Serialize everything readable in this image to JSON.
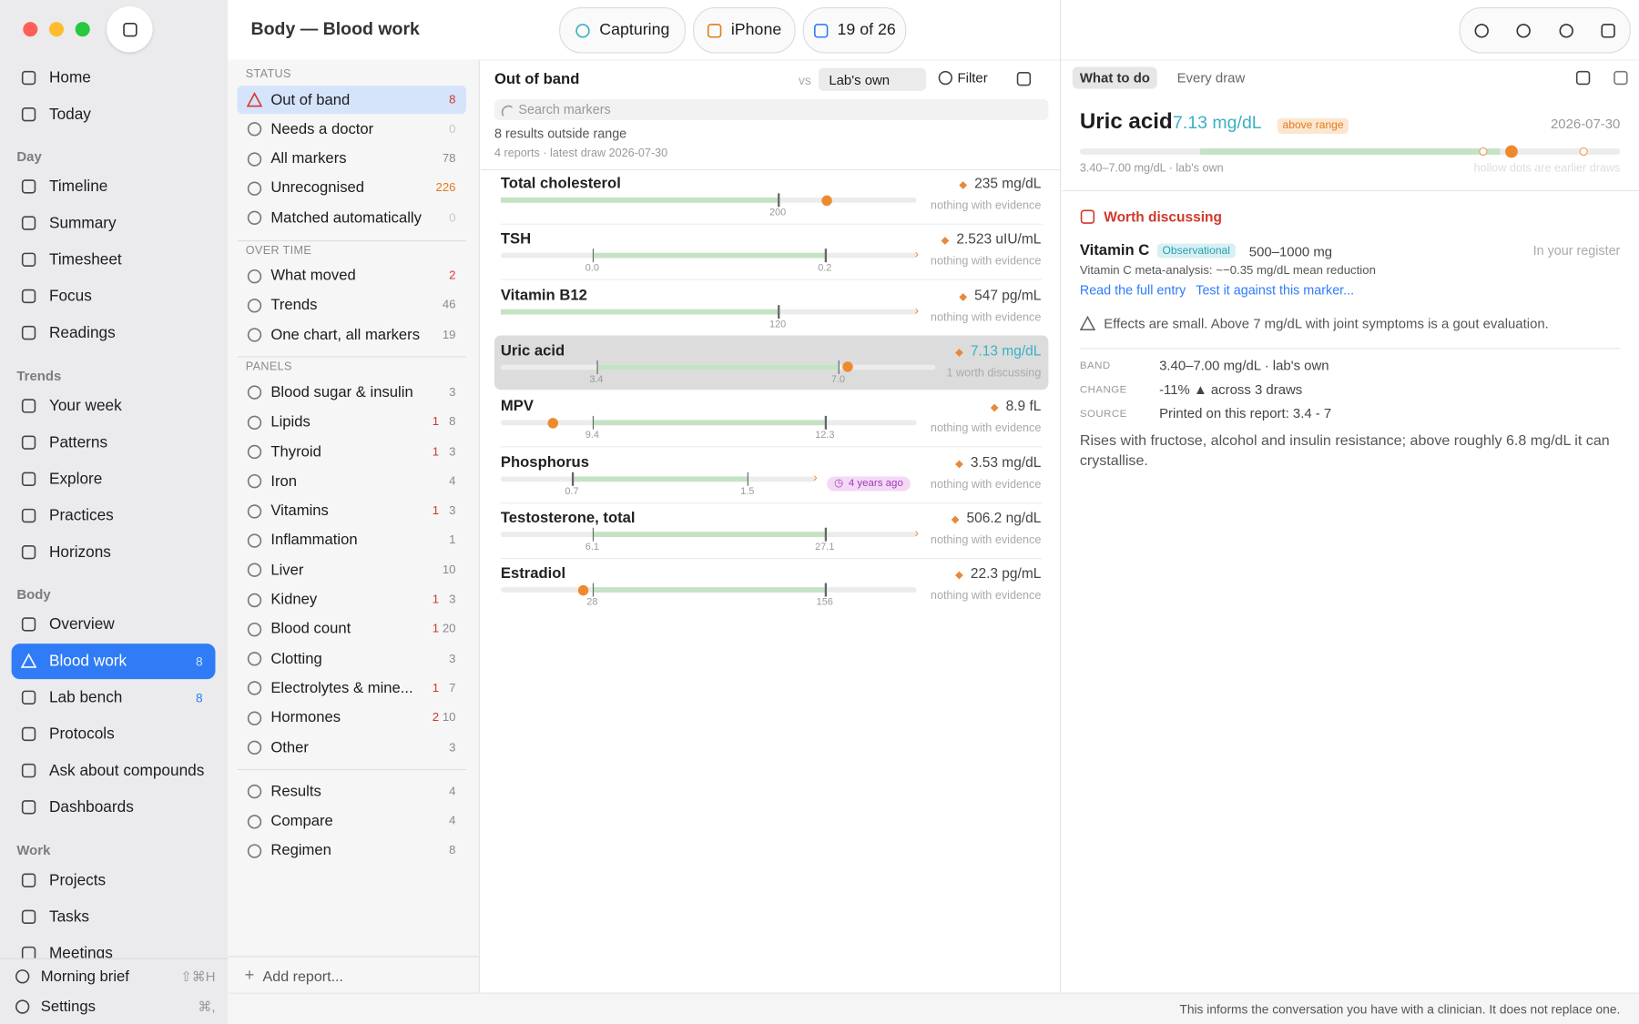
{
  "window": {
    "title": "Body — Blood work",
    "toolbar": [
      {
        "label": "Capturing"
      },
      {
        "label": "iPhone"
      },
      {
        "label": "19 of 26"
      }
    ]
  },
  "sidebar": {
    "groups": [
      {
        "items": [
          {
            "label": "Home"
          },
          {
            "label": "Today"
          }
        ]
      },
      {
        "heading": "Day",
        "items": [
          {
            "label": "Timeline"
          },
          {
            "label": "Summary"
          },
          {
            "label": "Timesheet"
          },
          {
            "label": "Focus"
          },
          {
            "label": "Readings"
          }
        ]
      },
      {
        "heading": "Trends",
        "items": [
          {
            "label": "Your week"
          },
          {
            "label": "Patterns"
          },
          {
            "label": "Explore"
          },
          {
            "label": "Practices"
          },
          {
            "label": "Horizons"
          }
        ]
      },
      {
        "heading": "Body",
        "items": [
          {
            "label": "Overview"
          },
          {
            "label": "Blood work",
            "badge": 8,
            "selected": true
          },
          {
            "label": "Lab bench",
            "badge": 8
          },
          {
            "label": "Protocols"
          },
          {
            "label": "Ask about compounds"
          },
          {
            "label": "Dashboards"
          }
        ]
      },
      {
        "heading": "Work",
        "items": [
          {
            "label": "Projects"
          },
          {
            "label": "Tasks"
          },
          {
            "label": "Meetings"
          }
        ]
      }
    ],
    "footer": [
      {
        "label": "Morning brief",
        "shortcut": "⇧⌘H"
      },
      {
        "label": "Settings",
        "shortcut": "⌘,"
      }
    ]
  },
  "navigator": {
    "sections": [
      {
        "heading": "STATUS",
        "items": [
          {
            "label": "Out of band",
            "count": 8,
            "selected": true
          },
          {
            "label": "Needs a doctor",
            "count": 0
          },
          {
            "label": "All markers",
            "count": 78
          },
          {
            "label": "Unrecognised",
            "count": 226
          },
          {
            "label": "Matched automatically",
            "count": 0
          }
        ]
      },
      {
        "heading": "OVER TIME",
        "items": [
          {
            "label": "What moved",
            "count": 2
          },
          {
            "label": "Trends",
            "count": 46
          },
          {
            "label": "One chart, all markers",
            "count": 19
          }
        ]
      },
      {
        "heading": "PANELS",
        "items": [
          {
            "label": "Blood sugar & insulin",
            "count": 3
          },
          {
            "label": "Lipids",
            "flagged": 1,
            "count": 8
          },
          {
            "label": "Thyroid",
            "flagged": 1,
            "count": 3
          },
          {
            "label": "Iron",
            "count": 4
          },
          {
            "label": "Vitamins",
            "flagged": 1,
            "count": 3
          },
          {
            "label": "Inflammation",
            "count": 1
          },
          {
            "label": "Liver",
            "count": 10
          },
          {
            "label": "Kidney",
            "flagged": 1,
            "count": 3
          },
          {
            "label": "Blood count",
            "flagged": 1,
            "count": 20
          },
          {
            "label": "Clotting",
            "count": 3
          },
          {
            "label": "Electrolytes & mine...",
            "flagged": 1,
            "count": 7
          },
          {
            "label": "Hormones",
            "flagged": 2,
            "count": 10
          },
          {
            "label": "Other",
            "count": 3
          }
        ]
      },
      {
        "items": [
          {
            "label": "Results",
            "count": 4
          },
          {
            "label": "Compare",
            "count": 4
          },
          {
            "label": "Regimen",
            "count": 8
          }
        ]
      }
    ],
    "add": "Add report..."
  },
  "list": {
    "title": "Out of band",
    "vs": "vs",
    "baseline": "Lab's own",
    "filter": "Filter",
    "search_placeholder": "Search markers",
    "summary": "8 results outside range",
    "detail": "4 reports · latest draw 2026-07-30",
    "markers": [
      {
        "name": "Total cholesterol",
        "value": "235 mg/dL",
        "note": "nothing with evidence",
        "ticks": [
          "200"
        ]
      },
      {
        "name": "TSH",
        "value": "2.523 uIU/mL",
        "note": "nothing with evidence",
        "ticks": [
          "0.0",
          "0.2"
        ]
      },
      {
        "name": "Vitamin B12",
        "value": "547 pg/mL",
        "note": "nothing with evidence",
        "ticks": [
          "120"
        ]
      },
      {
        "name": "Uric acid",
        "value": "7.13 mg/dL",
        "note": "1 worth discussing",
        "ticks": [
          "3.4",
          "7.0"
        ],
        "selected": true
      },
      {
        "name": "MPV",
        "value": "8.9 fL",
        "note": "nothing with evidence",
        "ticks": [
          "9.4",
          "12.3"
        ]
      },
      {
        "name": "Phosphorus",
        "value": "3.53 mg/dL",
        "note": "nothing with evidence",
        "ticks": [
          "0.7",
          "1.5"
        ],
        "badge": "4 years ago"
      },
      {
        "name": "Testosterone, total",
        "value": "506.2 ng/dL",
        "note": "nothing with evidence",
        "ticks": [
          "6.1",
          "27.1"
        ]
      },
      {
        "name": "Estradiol",
        "value": "22.3 pg/mL",
        "note": "nothing with evidence",
        "ticks": [
          "28",
          "156"
        ]
      }
    ]
  },
  "detail": {
    "tabs": [
      "What to do",
      "Every draw"
    ],
    "title": "Uric acid",
    "value": "7.13 mg/dL",
    "status": "above range",
    "date": "2026-07-30",
    "range_caption": "3.40–7.00 mg/dL · lab's own",
    "dots_caption": "hollow dots are earlier draws",
    "discuss": {
      "heading": "Worth discussing",
      "item": "Vitamin C",
      "tag": "Observational",
      "dose": "500–1000 mg",
      "where": "In your register",
      "evidence": "Vitamin C meta-analysis: ~−0.35 mg/dL mean reduction",
      "links": [
        "Read the full entry",
        "Test it against this marker..."
      ]
    },
    "warning": "Effects are small. Above 7 mg/dL with joint symptoms is a gout evaluation.",
    "facts": [
      {
        "label": "BAND",
        "value": "3.40–7.00 mg/dL · lab's own"
      },
      {
        "label": "CHANGE",
        "value": "-11% ▲ across 3 draws"
      },
      {
        "label": "SOURCE",
        "value": "Printed on this report: 3.4 - 7"
      }
    ],
    "description": "Rises with fructose, alcohol and insulin resistance; above roughly 6.8 mg/dL it can crystallise."
  },
  "footnote": "This informs the conversation you have with a clinician. It does not replace one."
}
